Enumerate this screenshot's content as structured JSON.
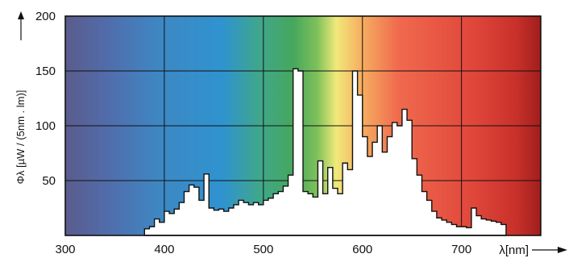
{
  "chart_data": {
    "type": "area",
    "x_ticks": [
      300,
      400,
      500,
      600,
      700
    ],
    "y_ticks": [
      50,
      100,
      150,
      200
    ],
    "xlim": [
      300,
      780
    ],
    "ylim": [
      0,
      200
    ],
    "xlabel": "λ[nm]",
    "ylabel": "Φλ [µW / (5nm . lm)]",
    "grid": true,
    "background": "visible spectrum gradient (violet to red)",
    "series": [
      {
        "x": [
          380,
          385,
          390,
          395,
          400,
          405,
          410,
          415,
          420,
          425,
          430,
          435,
          440,
          445,
          450,
          455,
          460,
          465,
          470,
          475,
          480,
          485,
          490,
          495,
          500,
          505,
          510,
          515,
          520,
          525,
          530,
          535,
          540,
          545,
          550,
          555,
          560,
          565,
          570,
          575,
          580,
          585,
          590,
          595,
          600,
          605,
          610,
          615,
          620,
          625,
          630,
          635,
          640,
          645,
          650,
          655,
          660,
          665,
          670,
          675,
          680,
          685,
          690,
          695,
          700,
          705,
          710,
          715,
          720,
          725,
          730,
          735,
          740
        ],
        "y": [
          6,
          8,
          15,
          12,
          22,
          20,
          24,
          30,
          40,
          46,
          44,
          32,
          56,
          25,
          23,
          24,
          22,
          25,
          28,
          32,
          30,
          28,
          30,
          28,
          32,
          34,
          38,
          40,
          45,
          55,
          152,
          150,
          40,
          38,
          35,
          68,
          38,
          62,
          43,
          38,
          66,
          60,
          150,
          128,
          90,
          72,
          85,
          100,
          76,
          90,
          103,
          100,
          115,
          105,
          70,
          55,
          40,
          32,
          22,
          16,
          14,
          12,
          10,
          8,
          8,
          7,
          25,
          18,
          15,
          14,
          13,
          12,
          10
        ]
      }
    ]
  }
}
